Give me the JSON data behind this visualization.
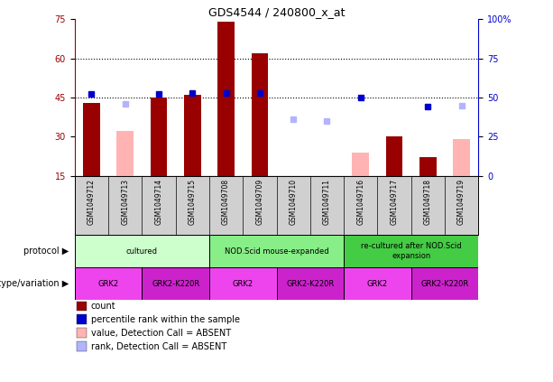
{
  "title": "GDS4544 / 240800_x_at",
  "samples": [
    "GSM1049712",
    "GSM1049713",
    "GSM1049714",
    "GSM1049715",
    "GSM1049708",
    "GSM1049709",
    "GSM1049710",
    "GSM1049711",
    "GSM1049716",
    "GSM1049717",
    "GSM1049718",
    "GSM1049719"
  ],
  "count_present": [
    43,
    null,
    45,
    46,
    74,
    62,
    null,
    null,
    null,
    30,
    22,
    null
  ],
  "count_absent": [
    null,
    32,
    null,
    null,
    null,
    null,
    null,
    null,
    24,
    null,
    null,
    29
  ],
  "rank_present": [
    52,
    null,
    52,
    53,
    53,
    53,
    null,
    null,
    50,
    null,
    44,
    null
  ],
  "rank_absent": [
    null,
    46,
    null,
    null,
    null,
    null,
    36,
    35,
    null,
    null,
    null,
    45
  ],
  "ylim_left": [
    15,
    75
  ],
  "ylim_right": [
    0,
    100
  ],
  "yticks_left": [
    15,
    30,
    45,
    60,
    75
  ],
  "yticks_right": [
    0,
    25,
    50,
    75,
    100
  ],
  "bar_width": 0.5,
  "count_color": "#990000",
  "count_absent_color": "#ffb3b3",
  "rank_color": "#0000cc",
  "rank_absent_color": "#b3b3ff",
  "hline_y_left": [
    45,
    60
  ],
  "protocol_groups": [
    {
      "label": "cultured",
      "samples": [
        "GSM1049712",
        "GSM1049713",
        "GSM1049714",
        "GSM1049715"
      ],
      "color": "#ccffcc"
    },
    {
      "label": "NOD.Scid mouse-expanded",
      "samples": [
        "GSM1049708",
        "GSM1049709",
        "GSM1049710",
        "GSM1049711"
      ],
      "color": "#88ee88"
    },
    {
      "label": "re-cultured after NOD.Scid\nexpansion",
      "samples": [
        "GSM1049716",
        "GSM1049717",
        "GSM1049718",
        "GSM1049719"
      ],
      "color": "#44cc44"
    }
  ],
  "genotype_groups": [
    {
      "label": "GRK2",
      "samples": [
        "GSM1049712",
        "GSM1049713"
      ],
      "color": "#ee44ee"
    },
    {
      "label": "GRK2-K220R",
      "samples": [
        "GSM1049714",
        "GSM1049715"
      ],
      "color": "#cc22cc"
    },
    {
      "label": "GRK2",
      "samples": [
        "GSM1049708",
        "GSM1049709"
      ],
      "color": "#ee44ee"
    },
    {
      "label": "GRK2-K220R",
      "samples": [
        "GSM1049710",
        "GSM1049711"
      ],
      "color": "#cc22cc"
    },
    {
      "label": "GRK2",
      "samples": [
        "GSM1049716",
        "GSM1049717"
      ],
      "color": "#ee44ee"
    },
    {
      "label": "GRK2-K220R",
      "samples": [
        "GSM1049718",
        "GSM1049719"
      ],
      "color": "#cc22cc"
    }
  ],
  "legend_items": [
    {
      "label": "count",
      "color": "#990000"
    },
    {
      "label": "percentile rank within the sample",
      "color": "#0000cc"
    },
    {
      "label": "value, Detection Call = ABSENT",
      "color": "#ffb3b3"
    },
    {
      "label": "rank, Detection Call = ABSENT",
      "color": "#b3b3ff"
    }
  ],
  "protocol_label": "protocol",
  "genotype_label": "genotype/variation",
  "sample_bg_color": "#d0d0d0",
  "plot_bg_color": "#ffffff",
  "fig_bg_color": "#ffffff"
}
